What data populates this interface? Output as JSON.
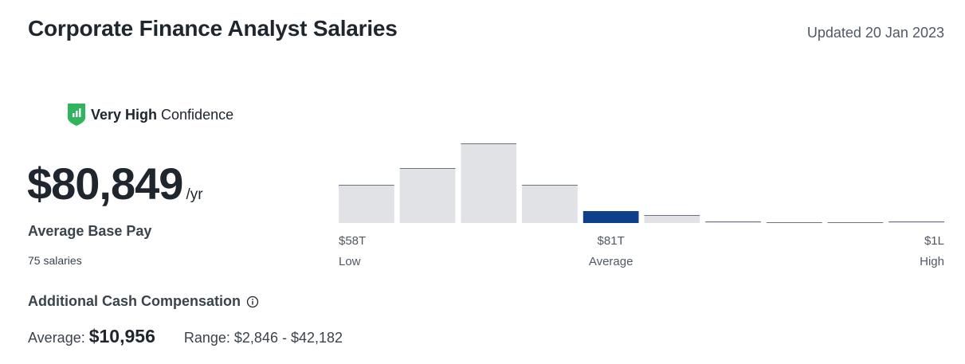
{
  "header": {
    "title": "Corporate Finance Analyst Salaries",
    "updated": "Updated 20 Jan 2023"
  },
  "confidence": {
    "level": "Very High",
    "label": "Confidence",
    "icon": "confidence-shield-icon",
    "color": "#2fb55d"
  },
  "base_pay": {
    "amount": "$80,849",
    "unit": "/yr",
    "label": "Average Base Pay",
    "count": "75 salaries"
  },
  "additional": {
    "title": "Additional Cash Compensation",
    "info_icon": "info-icon",
    "average_label": "Average:",
    "average_value": "$10,956",
    "range": "Range: $2,846 - $42,182"
  },
  "chart_data": {
    "type": "bar",
    "values": [
      0.48,
      0.69,
      1.0,
      0.48,
      0.15,
      0.1,
      0.02,
      0.01,
      0.01,
      0.02
    ],
    "highlight_index": 4,
    "colors": {
      "bar": "#e1e2e5",
      "bar_border": "#6b7280",
      "highlight": "#0d3f8a"
    },
    "axis_labels": [
      {
        "value": "$58T",
        "caption": "Low",
        "align": "start",
        "bar": 0
      },
      {
        "value": "$81T",
        "caption": "Average",
        "align": "middle",
        "bar": 4
      },
      {
        "value": "$1L",
        "caption": "High",
        "align": "end",
        "bar": 9
      }
    ]
  }
}
